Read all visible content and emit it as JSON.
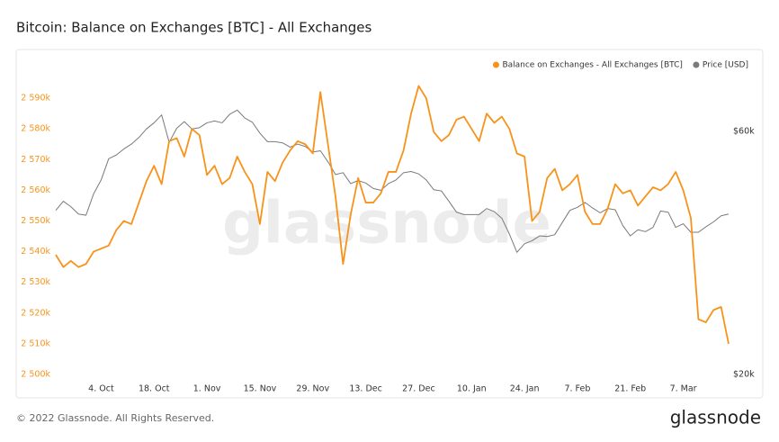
{
  "chart_data": {
    "type": "line",
    "title": "Bitcoin: Balance on Exchanges [BTC] - All Exchanges",
    "watermark": "glassnode",
    "categories": [
      null,
      null,
      null,
      null,
      null,
      null,
      "4. Oct",
      null,
      null,
      null,
      null,
      null,
      null,
      "18. Oct",
      null,
      null,
      null,
      null,
      null,
      null,
      "1. Nov",
      null,
      null,
      null,
      null,
      null,
      null,
      "15. Nov",
      null,
      null,
      null,
      null,
      null,
      null,
      "29. Nov",
      null,
      null,
      null,
      null,
      null,
      null,
      "13. Dec",
      null,
      null,
      null,
      null,
      null,
      null,
      "27. Dec",
      null,
      null,
      null,
      null,
      null,
      null,
      "10. Jan",
      null,
      null,
      null,
      null,
      null,
      null,
      "24. Jan",
      null,
      null,
      null,
      null,
      null,
      null,
      "7. Feb",
      null,
      null,
      null,
      null,
      null,
      null,
      "21. Feb",
      null,
      null,
      null,
      null,
      null,
      null,
      "7. Mar",
      null,
      null,
      null,
      null,
      null,
      null
    ],
    "series": [
      {
        "name": "Balance on Exchanges - All Exchanges [BTC]",
        "color": "#f7931a",
        "values": [
          2539000,
          2535000,
          2537000,
          2535000,
          2536000,
          2540000,
          2541000,
          2542000,
          2547000,
          2550000,
          2549000,
          2556000,
          2563000,
          2568000,
          2562000,
          2576000,
          2577000,
          2571000,
          2580000,
          2578000,
          2565000,
          2568000,
          2562000,
          2564000,
          2571000,
          2566000,
          2562000,
          2549000,
          2566000,
          2563000,
          2569000,
          2573000,
          2576000,
          2575000,
          2572000,
          2592000,
          2575000,
          2558000,
          2536000,
          2552000,
          2564000,
          2556000,
          2556000,
          2559000,
          2566000,
          2566000,
          2573000,
          2585000,
          2594000,
          2590000,
          2579000,
          2576000,
          2578000,
          2583000,
          2584000,
          2580000,
          2576000,
          2585000,
          2582000,
          2584000,
          2580000,
          2572000,
          2571000,
          2550000,
          2553000,
          2564000,
          2567000,
          2560000,
          2562000,
          2565000,
          2553000,
          2549000,
          2549000,
          2554000,
          2562000,
          2559000,
          2560000,
          2555000,
          2558000,
          2561000,
          2560000,
          2562000,
          2566000,
          2560000,
          2551000,
          2518000,
          2517000,
          2521000,
          2522000,
          2510000
        ]
      },
      {
        "name": "Price [USD]",
        "color": "#7a7a7a",
        "axis": "y2",
        "values": [
          47000,
          48500,
          47600,
          46400,
          46200,
          49700,
          52000,
          55500,
          56100,
          57100,
          57900,
          59000,
          60400,
          61400,
          62700,
          58200,
          60500,
          61600,
          60400,
          60600,
          61400,
          61700,
          61400,
          62800,
          63500,
          62200,
          61500,
          59700,
          58300,
          58300,
          58100,
          57400,
          57900,
          57500,
          56600,
          56800,
          55000,
          52900,
          53200,
          51400,
          51900,
          51500,
          50600,
          50300,
          51400,
          52000,
          53200,
          53400,
          53000,
          52000,
          50400,
          50200,
          48500,
          46700,
          46300,
          46300,
          46300,
          47300,
          46800,
          45700,
          43100,
          40100,
          41500,
          42000,
          42800,
          42700,
          43000,
          45000,
          47000,
          47500,
          48300,
          47400,
          46600,
          47300,
          47100,
          44500,
          42800,
          43800,
          43500,
          44200,
          46900,
          46700,
          44200,
          44800,
          43400,
          43400,
          44300,
          45100,
          46100,
          46400
        ]
      }
    ],
    "ylim": [
      2500000,
      2600000
    ],
    "yticks": [
      {
        "value": 2500000,
        "label": "2 500k"
      },
      {
        "value": 2510000,
        "label": "2 510k"
      },
      {
        "value": 2520000,
        "label": "2 520k"
      },
      {
        "value": 2530000,
        "label": "2 530k"
      },
      {
        "value": 2540000,
        "label": "2 540k"
      },
      {
        "value": 2550000,
        "label": "2 550k"
      },
      {
        "value": 2560000,
        "label": "2 560k"
      },
      {
        "value": 2570000,
        "label": "2 570k"
      },
      {
        "value": 2580000,
        "label": "2 580k"
      },
      {
        "value": 2590000,
        "label": "2 590k"
      }
    ],
    "y2lim": [
      20000,
      70500
    ],
    "y2ticks": [
      {
        "value": 20000,
        "label": "$20k"
      },
      {
        "value": 60000,
        "label": "$60k"
      }
    ],
    "legend": "top-right"
  },
  "footer": "© 2022 Glassnode. All Rights Reserved.",
  "logo": "glassnode"
}
